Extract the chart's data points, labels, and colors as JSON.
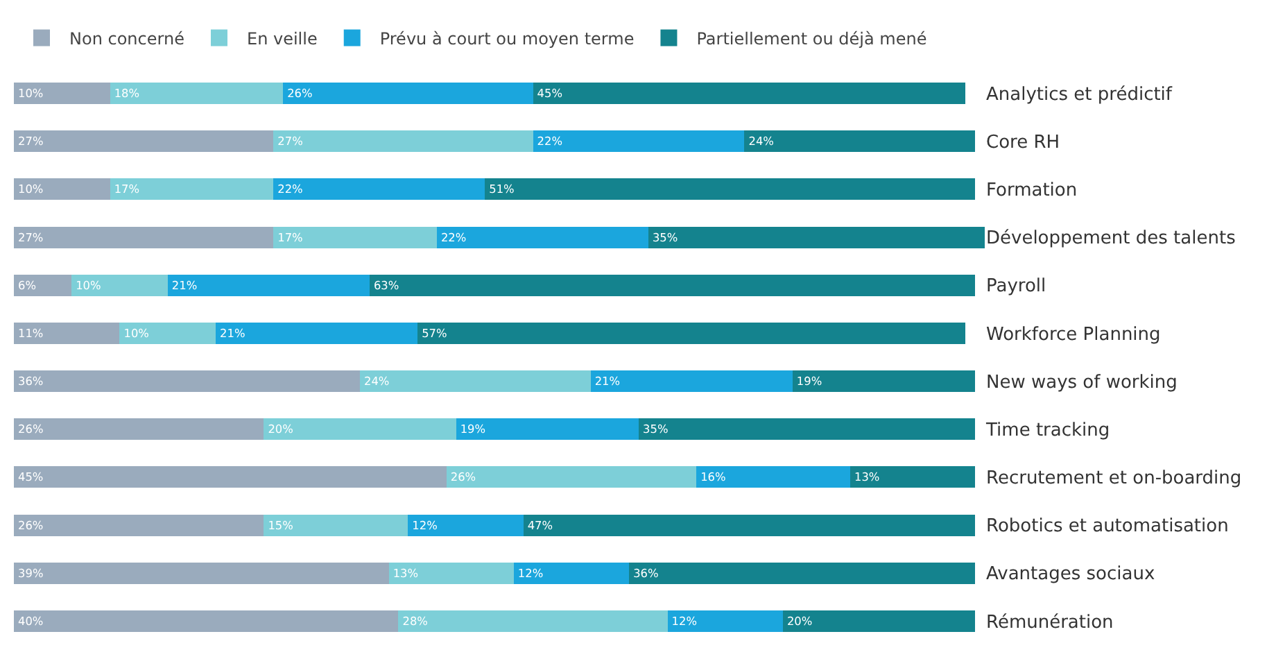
{
  "chart_data": {
    "type": "bar",
    "orientation": "horizontal",
    "stacked": true,
    "legend": "top left",
    "grid": false,
    "tick_labels": "y",
    "xlim": [
      0,
      101
    ],
    "categories": [
      "Analytics et prédictif",
      "Core RH",
      "Formation",
      "Développement des talents",
      "Payroll",
      "Workforce Planning",
      "New ways of working",
      "Time tracking",
      "Recrutement et on-boarding",
      "Robotics et automatisation",
      "Avantages sociaux",
      "Rémunération"
    ],
    "series": [
      {
        "name": "Non concerné",
        "color": "#9aabbd",
        "values": [
          10,
          27,
          10,
          27,
          6,
          11,
          36,
          26,
          45,
          26,
          39,
          40
        ],
        "value_labels": [
          "10%",
          "27%",
          "10%",
          "27%",
          "6%",
          "11%",
          "36%",
          "26%",
          "45%",
          "26%",
          "39%",
          "40%"
        ]
      },
      {
        "name": "En veille",
        "color": "#7dcfd8",
        "values": [
          18,
          27,
          17,
          17,
          10,
          10,
          24,
          20,
          26,
          15,
          13,
          28
        ],
        "value_labels": [
          "18%",
          "27%",
          "17%",
          "17%",
          "10%",
          "10%",
          "24%",
          "20%",
          "26%",
          "15%",
          "13%",
          "28%"
        ]
      },
      {
        "name": "Prévu à court ou moyen terme",
        "color": "#1ba6dd",
        "values": [
          26,
          22,
          22,
          22,
          21,
          21,
          21,
          19,
          16,
          12,
          12,
          12
        ],
        "value_labels": [
          "26%",
          "22%",
          "22%",
          "22%",
          "21%",
          "21%",
          "21%",
          "19%",
          "16%",
          "12%",
          "12%",
          "12%"
        ]
      },
      {
        "name": "Partiellement ou déjà mené",
        "color": "#14838e",
        "values": [
          45,
          24,
          51,
          35,
          63,
          57,
          19,
          35,
          13,
          47,
          36,
          20
        ],
        "value_labels": [
          "45%",
          "24%",
          "51%",
          "35%",
          "63%",
          "57%",
          "19%",
          "35%",
          "13%",
          "47%",
          "36%",
          "20%"
        ]
      }
    ]
  }
}
